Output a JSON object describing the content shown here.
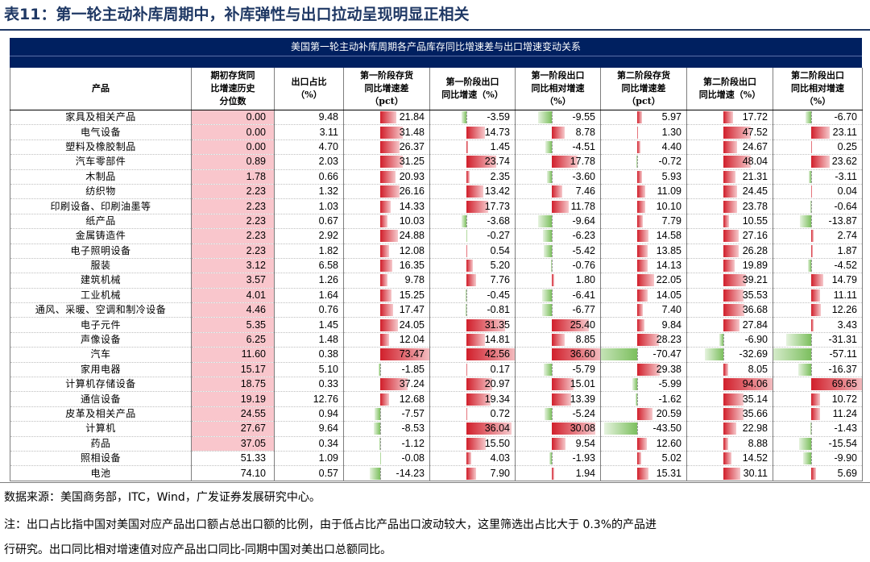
{
  "page_title": "表11：第一轮主动补库周期中，补库弹性与出口拉动呈现明显正相关",
  "table_title": "美国第一轮主动补库周期各产品库存同比增速差与出口增速变动关系",
  "columns": [
    {
      "lines": [
        "产品"
      ]
    },
    {
      "lines": [
        "期初存货同",
        "比增速历史",
        "分位数"
      ]
    },
    {
      "lines": [
        "出口占比",
        "（%）"
      ]
    },
    {
      "lines": [
        "第一阶段存货",
        "同比增速差",
        "（pct）"
      ]
    },
    {
      "lines": [
        "第一阶段出口",
        "同比增速（%）"
      ]
    },
    {
      "lines": [
        "第一阶段出口",
        "同比相对增速",
        "（%）"
      ]
    },
    {
      "lines": [
        "第二阶段存货",
        "同比增速差",
        "（pct）"
      ]
    },
    {
      "lines": [
        "第二阶段出口",
        "同比增速（%）"
      ]
    },
    {
      "lines": [
        "第二阶段出口",
        "同比相对增速",
        "（%）"
      ]
    }
  ],
  "colors": {
    "positive_bar": "#d11f2b",
    "negative_bar": "#7cbf5e",
    "highlight": "#f9c6cc",
    "header_bg": "#002060"
  },
  "rows": [
    {
      "name": "家具及相关产品",
      "pct": "0.00",
      "share": "9.48",
      "v": [
        "21.84",
        "-3.59",
        "-9.55",
        "5.97",
        "17.72",
        "-6.70"
      ]
    },
    {
      "name": "电气设备",
      "pct": "0.00",
      "share": "3.11",
      "v": [
        "31.48",
        "14.73",
        "8.78",
        "1.30",
        "47.52",
        "23.11"
      ]
    },
    {
      "name": "塑料及橡胶制品",
      "pct": "0.00",
      "share": "4.70",
      "v": [
        "26.37",
        "1.45",
        "-4.51",
        "4.40",
        "24.67",
        "0.25"
      ]
    },
    {
      "name": "汽车零部件",
      "pct": "0.89",
      "share": "2.03",
      "v": [
        "31.25",
        "23.74",
        "17.78",
        "-0.72",
        "48.04",
        "23.62"
      ]
    },
    {
      "name": "木制品",
      "pct": "1.78",
      "share": "0.66",
      "v": [
        "20.93",
        "2.35",
        "-3.60",
        "5.93",
        "21.31",
        "-3.11"
      ]
    },
    {
      "name": "纺织物",
      "pct": "2.23",
      "share": "1.32",
      "v": [
        "26.16",
        "13.42",
        "7.46",
        "11.09",
        "24.45",
        "0.04"
      ]
    },
    {
      "name": "印刷设备、印刷油墨等",
      "pct": "2.23",
      "share": "1.03",
      "v": [
        "14.33",
        "17.73",
        "11.78",
        "10.10",
        "23.78",
        "-0.64"
      ]
    },
    {
      "name": "纸产品",
      "pct": "2.23",
      "share": "0.67",
      "v": [
        "10.03",
        "-3.68",
        "-9.64",
        "7.79",
        "10.55",
        "-13.87"
      ]
    },
    {
      "name": "金属铸造件",
      "pct": "2.23",
      "share": "2.92",
      "v": [
        "24.88",
        "-0.27",
        "-6.23",
        "14.58",
        "27.16",
        "2.74"
      ]
    },
    {
      "name": "电子照明设备",
      "pct": "2.23",
      "share": "1.82",
      "v": [
        "12.08",
        "0.54",
        "-5.42",
        "13.85",
        "26.28",
        "1.87"
      ]
    },
    {
      "name": "服装",
      "pct": "3.12",
      "share": "6.58",
      "v": [
        "16.35",
        "5.20",
        "-0.76",
        "14.13",
        "19.89",
        "-4.52"
      ]
    },
    {
      "name": "建筑机械",
      "pct": "3.57",
      "share": "1.26",
      "v": [
        "9.78",
        "7.76",
        "1.80",
        "22.05",
        "39.21",
        "14.79"
      ]
    },
    {
      "name": "工业机械",
      "pct": "4.01",
      "share": "1.64",
      "v": [
        "15.25",
        "-0.45",
        "-6.41",
        "14.05",
        "35.53",
        "11.11"
      ]
    },
    {
      "name": "通风、采暖、空调和制冷设备",
      "pct": "4.46",
      "share": "0.76",
      "v": [
        "17.47",
        "-0.81",
        "-6.77",
        "7.40",
        "36.68",
        "12.26"
      ]
    },
    {
      "name": "电子元件",
      "pct": "5.35",
      "share": "1.45",
      "v": [
        "24.05",
        "31.35",
        "25.40",
        "9.84",
        "27.84",
        "3.43"
      ]
    },
    {
      "name": "声像设备",
      "pct": "6.25",
      "share": "1.48",
      "v": [
        "12.04",
        "14.81",
        "8.85",
        "28.23",
        "-6.90",
        "-31.31"
      ]
    },
    {
      "name": "汽车",
      "pct": "11.60",
      "share": "0.38",
      "v": [
        "73.47",
        "42.56",
        "36.60",
        "-70.47",
        "-32.69",
        "-57.11"
      ]
    },
    {
      "name": "家用电器",
      "pct": "15.17",
      "share": "5.10",
      "v": [
        "-1.85",
        "0.17",
        "-5.79",
        "29.38",
        "8.05",
        "-16.37"
      ]
    },
    {
      "name": "计算机存储设备",
      "pct": "18.75",
      "share": "0.33",
      "v": [
        "37.24",
        "20.97",
        "15.01",
        "-5.99",
        "94.06",
        "69.65"
      ]
    },
    {
      "name": "通信设备",
      "pct": "19.19",
      "share": "12.76",
      "v": [
        "12.68",
        "19.34",
        "13.39",
        "-1.62",
        "35.14",
        "10.72"
      ]
    },
    {
      "name": "皮革及相关产品",
      "pct": "24.55",
      "share": "0.94",
      "v": [
        "-7.57",
        "0.72",
        "-5.24",
        "20.59",
        "35.66",
        "11.24"
      ]
    },
    {
      "name": "计算机",
      "pct": "27.67",
      "share": "9.64",
      "v": [
        "-8.53",
        "36.04",
        "30.08",
        "-43.50",
        "22.98",
        "-1.43"
      ]
    },
    {
      "name": "药品",
      "pct": "37.05",
      "share": "0.34",
      "v": [
        "-1.12",
        "15.50",
        "9.54",
        "12.60",
        "8.88",
        "-15.54"
      ]
    },
    {
      "name": "照相设备",
      "pct": "51.33",
      "share": "1.09",
      "v": [
        "-0.08",
        "4.03",
        "-1.93",
        "5.02",
        "14.52",
        "-9.90"
      ]
    },
    {
      "name": "电池",
      "pct": "74.10",
      "share": "0.57",
      "v": [
        "-14.23",
        "7.90",
        "1.94",
        "15.31",
        "30.11",
        "5.69"
      ]
    }
  ],
  "footnotes": {
    "source": "数据来源：美国商务部，ITC，Wind，广发证券发展研究中心。",
    "note_line1": "注：出口占比指中国对美国对应产品出口额占总出口额的比例，由于低占比产品出口波动较大，这里筛选出占比大于 0.3%的产品进",
    "note_line2": "行研究。出口同比相对增速值对应产品出口同比-同期中国对美出口总额同比。"
  }
}
